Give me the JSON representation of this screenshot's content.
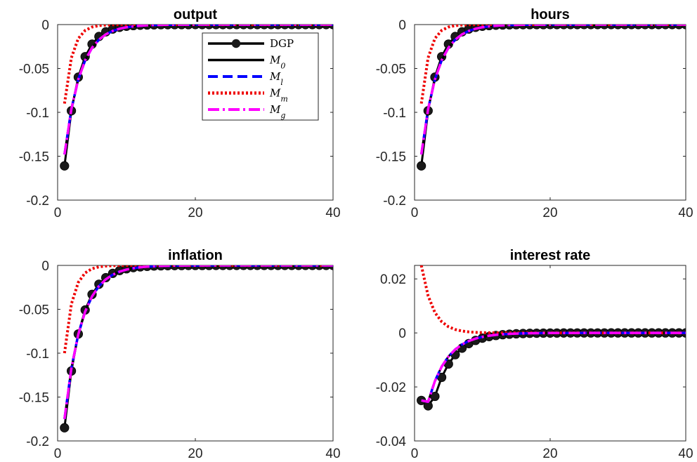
{
  "chart_data": [
    {
      "type": "line",
      "title": "output",
      "xlim": [
        0,
        40
      ],
      "ylim": [
        -0.2,
        0
      ],
      "xticks": [
        "0",
        "20",
        "40"
      ],
      "yticks": [
        "0",
        "-0.05",
        "-0.1",
        "-0.15",
        "-0.2"
      ],
      "legend": {
        "placement": "top-right-inside",
        "entries": [
          {
            "id": "dgp",
            "label": "DGP"
          },
          {
            "id": "m0",
            "label": "M",
            "sub": "0"
          },
          {
            "id": "ml",
            "label": "M",
            "sub": "l"
          },
          {
            "id": "mm",
            "label": "M",
            "sub": "m"
          },
          {
            "id": "mg",
            "label": "M",
            "sub": "g"
          }
        ]
      },
      "series": [
        {
          "id": "dgp",
          "y0": -0.161,
          "decay": 0.61,
          "marker": "circle",
          "color": "#000000"
        },
        {
          "id": "m0",
          "y0": -0.148,
          "decay": 0.65,
          "color": "#000000"
        },
        {
          "id": "ml",
          "y0": -0.148,
          "decay": 0.65,
          "color": "#0000ff"
        },
        {
          "id": "mm",
          "y0": -0.09,
          "decay": 0.42,
          "color": "#ee0000"
        },
        {
          "id": "mg",
          "y0": -0.148,
          "decay": 0.65,
          "color": "#ff00ff"
        }
      ]
    },
    {
      "type": "line",
      "title": "hours",
      "xlim": [
        0,
        40
      ],
      "ylim": [
        -0.2,
        0
      ],
      "xticks": [
        "0",
        "20",
        "40"
      ],
      "yticks": [
        "0",
        "-0.05",
        "-0.1",
        "-0.15",
        "-0.2"
      ],
      "series": [
        {
          "id": "dgp",
          "y0": -0.161,
          "decay": 0.61,
          "marker": "circle",
          "color": "#000000"
        },
        {
          "id": "m0",
          "y0": -0.148,
          "decay": 0.65,
          "color": "#000000"
        },
        {
          "id": "ml",
          "y0": -0.148,
          "decay": 0.65,
          "color": "#0000ff"
        },
        {
          "id": "mm",
          "y0": -0.09,
          "decay": 0.42,
          "color": "#ee0000"
        },
        {
          "id": "mg",
          "y0": -0.148,
          "decay": 0.65,
          "color": "#ff00ff"
        }
      ]
    },
    {
      "type": "line",
      "title": "inflation",
      "xlim": [
        0,
        40
      ],
      "ylim": [
        -0.2,
        0
      ],
      "xticks": [
        "0",
        "20",
        "40"
      ],
      "yticks": [
        "0",
        "-0.05",
        "-0.1",
        "-0.15",
        "-0.2"
      ],
      "series": [
        {
          "id": "dgp",
          "y0": -0.185,
          "decay": 0.65,
          "marker": "circle",
          "color": "#000000"
        },
        {
          "id": "m0",
          "y0": -0.175,
          "decay": 0.67,
          "color": "#000000"
        },
        {
          "id": "ml",
          "y0": -0.175,
          "decay": 0.67,
          "color": "#0000ff"
        },
        {
          "id": "mm",
          "y0": -0.1,
          "decay": 0.44,
          "color": "#ee0000"
        },
        {
          "id": "mg",
          "y0": -0.175,
          "decay": 0.67,
          "color": "#ff00ff"
        }
      ]
    },
    {
      "type": "line",
      "title": "interest rate",
      "xlim": [
        0,
        40
      ],
      "ylim": [
        -0.04,
        0.025
      ],
      "xticks": [
        "0",
        "20",
        "40"
      ],
      "yticks": [
        "0.02",
        "0",
        "-0.02",
        "-0.04"
      ],
      "series": [
        {
          "id": "dgp",
          "points": [
            [
              1,
              -0.025
            ],
            [
              2,
              -0.027
            ]
          ],
          "tail_from": 3,
          "tail_y0": -0.0235,
          "decay": 0.7,
          "marker": "circle",
          "color": "#000000"
        },
        {
          "id": "m0",
          "points": [
            [
              1,
              -0.025
            ]
          ],
          "tail_from": 2,
          "tail_y0": -0.0255,
          "decay": 0.7,
          "color": "#000000"
        },
        {
          "id": "ml",
          "points": [
            [
              1,
              -0.025
            ]
          ],
          "tail_from": 2,
          "tail_y0": -0.0255,
          "decay": 0.7,
          "color": "#0000ff"
        },
        {
          "id": "mm",
          "y0": 0.025,
          "decay": 0.55,
          "color": "#ee0000"
        },
        {
          "id": "mg",
          "points": [
            [
              1,
              -0.025
            ]
          ],
          "tail_from": 2,
          "tail_y0": -0.0255,
          "decay": 0.7,
          "color": "#ff00ff"
        }
      ]
    }
  ]
}
